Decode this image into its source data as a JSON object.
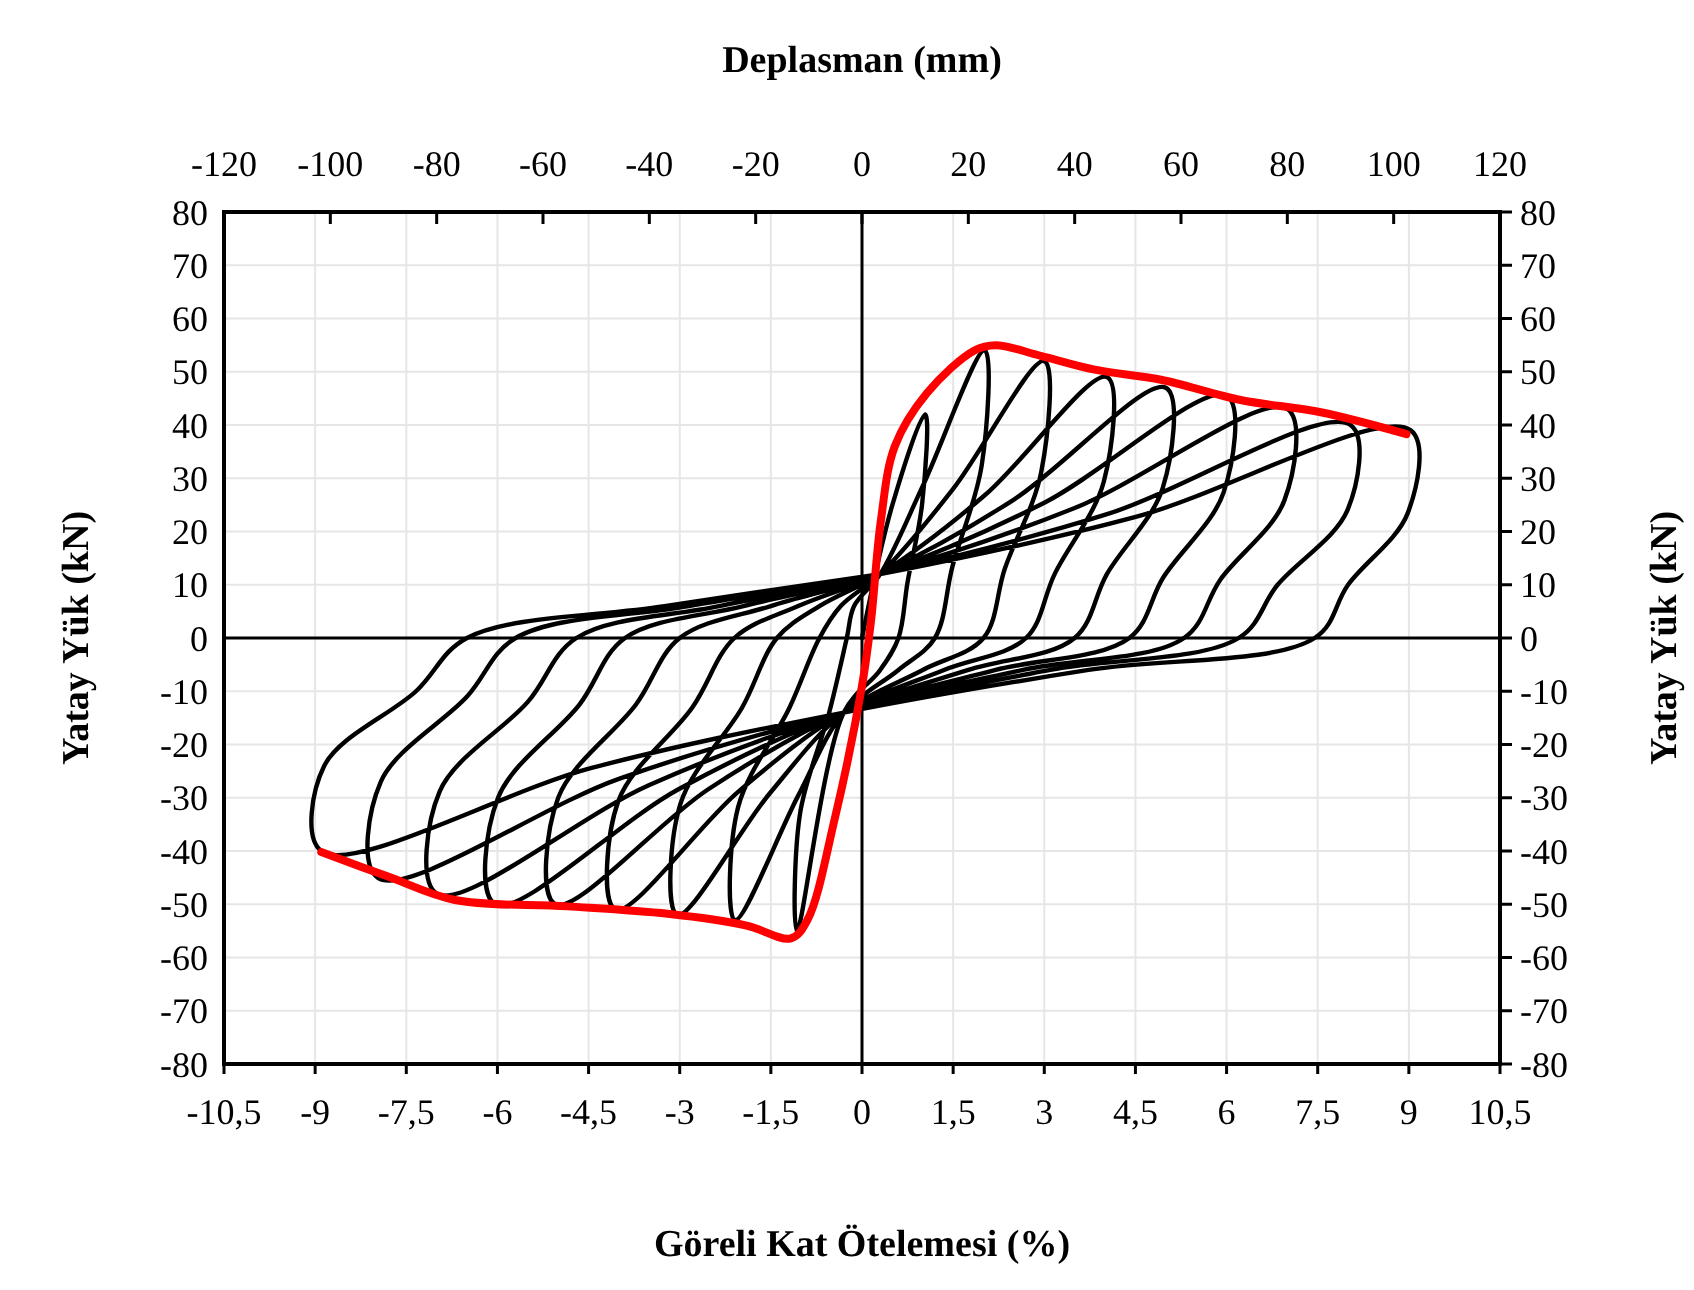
{
  "chart_data": {
    "type": "line",
    "x2label": "Deplasman (mm)",
    "xlabel": "Göreli Kat Ötelemesi (%)",
    "ylabel": "Yatay Yük (kN)",
    "y2label": "Yatay Yük (kN)",
    "xlim": [
      -10.5,
      10.5
    ],
    "xticks": [
      {
        "value": -10.5,
        "label": "-10,5"
      },
      -9,
      {
        "value": -7.5,
        "label": "-7,5"
      },
      -6,
      {
        "value": -4.5,
        "label": "-4,5"
      },
      -3,
      {
        "value": -1.5,
        "label": "-1,5"
      },
      0,
      {
        "value": 1.5,
        "label": "1,5"
      },
      3,
      {
        "value": 4.5,
        "label": "4,5"
      },
      6,
      {
        "value": 7.5,
        "label": "7,5"
      },
      9,
      {
        "value": 10.5,
        "label": "10,5"
      }
    ],
    "x2lim": [
      -120,
      120
    ],
    "x2ticks": [
      -120,
      -100,
      -80,
      -60,
      -40,
      -20,
      0,
      20,
      40,
      60,
      80,
      100,
      120
    ],
    "ylim": [
      -80,
      80
    ],
    "yticks": [
      -80,
      -70,
      -60,
      -50,
      -40,
      -30,
      -20,
      -10,
      0,
      10,
      20,
      30,
      40,
      50,
      60,
      70,
      80
    ],
    "y2lim": [
      -80,
      80
    ],
    "y2ticks": [
      -80,
      -70,
      -60,
      -50,
      -40,
      -30,
      -20,
      -10,
      0,
      10,
      20,
      30,
      40,
      50,
      60,
      70,
      80
    ],
    "grid": true,
    "series": [
      {
        "color": "#000000",
        "x": [
          0,
          0.5,
          1.04,
          0.99,
          0.75,
          0.6,
          0.3,
          -0.3,
          -1.07,
          -1.02,
          -0.54,
          -0.25,
          -0.13,
          0.3,
          1.01,
          2.02,
          1.97,
          1.49,
          1.2,
          0.6,
          -0.3,
          -1.05,
          -2.09,
          -2.04,
          -1.19,
          -0.7,
          -0.35,
          0.3,
          1.5,
          3,
          2.95,
          2.35,
          2,
          1,
          -0.3,
          -1.52,
          -3.04,
          -2.99,
          -1.97,
          -1.4,
          -0.7,
          0.3,
          2.02,
          4.03,
          3.98,
          3.17,
          2.7,
          1.35,
          -0.3,
          -2.03,
          -4.06,
          -4.01,
          -2.79,
          -2.1,
          -1.05,
          0.3,
          2.5,
          5,
          4.95,
          4.03,
          3.5,
          1.75,
          -0.3,
          -2.53,
          -5.05,
          -5,
          -3.72,
          -3,
          -1.5,
          0.3,
          3,
          6,
          5.95,
          4.96,
          4.4,
          2.2,
          -0.3,
          -3.02,
          -6.04,
          -5.99,
          -4.65,
          -3.9,
          -1.95,
          0.3,
          3.5,
          7,
          6.95,
          5.9,
          5.3,
          2.65,
          -0.3,
          -3.5,
          -7,
          -6.95,
          -5.5,
          -4.7,
          -2.35,
          0.3,
          4.02,
          8.04,
          7.99,
          6.84,
          6.2,
          3.1,
          -0.3,
          -3.99,
          -7.97,
          -7.92,
          -6.5,
          -5.7,
          -2.85,
          0.3,
          4.52,
          9.03,
          8.98,
          8,
          7.45,
          3.73,
          -0.3,
          -4.45,
          -8.9,
          -8.85,
          -7.34,
          -6.5,
          -3.25,
          0.3
        ],
        "values": [
          0,
          25,
          42,
          25.2,
          10.5,
          0,
          -6,
          -14,
          -55,
          -33,
          -14,
          0,
          6,
          12,
          28.8,
          54,
          32.4,
          13.5,
          0,
          -6,
          -14,
          -29.6,
          -53,
          -31.8,
          -13,
          0,
          6,
          12,
          28,
          52,
          31.2,
          13,
          0,
          -6,
          -14,
          -29.2,
          -52,
          -31.2,
          -13,
          0,
          6,
          12,
          26.8,
          49,
          29.4,
          12,
          0,
          -6,
          -14,
          -28.8,
          -51,
          -30.6,
          -13,
          0,
          6,
          12,
          26,
          47,
          28.2,
          12,
          0,
          -6,
          -14,
          -28.4,
          -50,
          -30,
          -12.5,
          0,
          6,
          12,
          25.4,
          45.5,
          27.3,
          11.4,
          0,
          -6,
          -14,
          -28.4,
          -50,
          -30,
          -12.5,
          0,
          6,
          12,
          24.4,
          43,
          25.8,
          11,
          0,
          -6,
          -14,
          -27.6,
          -48,
          -28.8,
          -12,
          0,
          6,
          12,
          23.2,
          40,
          24,
          10,
          0,
          -6,
          -14,
          -26.4,
          -45,
          -27,
          -11,
          0,
          6,
          12,
          22.8,
          39,
          23.4,
          10,
          0,
          -6,
          -14,
          -24.4,
          -40,
          -24,
          -10,
          0,
          6,
          12
        ]
      },
      {
        "color": "#ff0000",
        "x": [
          -8.9,
          -7.8,
          -6.7,
          -4.85,
          -3.2,
          -1.9,
          -1.17,
          -0.9,
          -0.45,
          0,
          0.15,
          0.31,
          0.54,
          1.07,
          1.85,
          2.2,
          2.94,
          3.83,
          4.92,
          6.23,
          7.55,
          8.96
        ],
        "values": [
          -40.2,
          -44.8,
          -49.2,
          -50.4,
          -51.8,
          -54,
          -56.4,
          -53,
          -34,
          -9,
          3.4,
          22,
          36,
          46,
          54,
          55,
          53,
          50.4,
          48.5,
          44.7,
          42.4,
          38.3
        ]
      }
    ]
  }
}
